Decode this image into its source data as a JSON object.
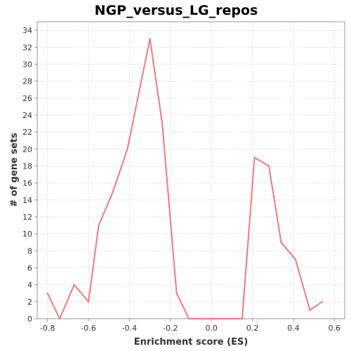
{
  "chart_data": {
    "type": "line",
    "title": "NGP_versus_LG_repos",
    "xlabel": "Enrichment score (ES)",
    "ylabel": "# of gene sets",
    "xlim": [
      -0.85,
      0.65
    ],
    "ylim": [
      0,
      35
    ],
    "xticks": [
      "-0.8",
      "-0.6",
      "-0.4",
      "-0.2",
      "0.0",
      "0.2",
      "0.4",
      "0.6"
    ],
    "yticks": [
      "0",
      "2",
      "4",
      "6",
      "8",
      "10",
      "12",
      "14",
      "16",
      "18",
      "20",
      "22",
      "24",
      "26",
      "28",
      "30",
      "32",
      "34"
    ],
    "grid": true,
    "line_color": "#f07b7e",
    "series": [
      {
        "x": [
          -0.8,
          -0.74,
          -0.67,
          -0.6,
          -0.55,
          -0.48,
          -0.41,
          -0.3,
          -0.24,
          -0.17,
          -0.11,
          -0.05,
          0.02,
          0.08,
          0.15,
          0.21,
          0.28,
          0.34,
          0.41,
          0.48,
          0.54
        ],
        "y": [
          3,
          0,
          4,
          2,
          11,
          15,
          20,
          33,
          23,
          3,
          0,
          0,
          0,
          0,
          0,
          19,
          18,
          9,
          7,
          1,
          2
        ]
      }
    ]
  }
}
